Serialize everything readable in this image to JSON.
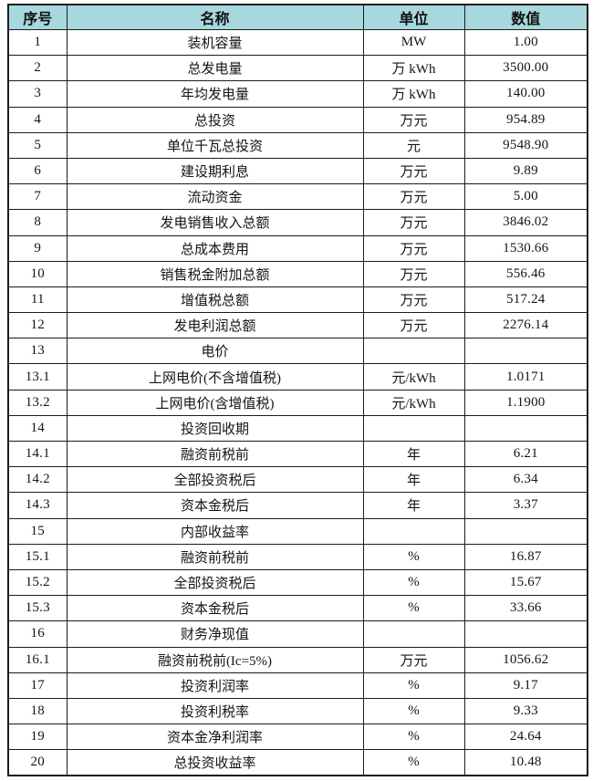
{
  "table": {
    "headers": [
      "序号",
      "名称",
      "单位",
      "数值"
    ],
    "rows": [
      {
        "no": "1",
        "name": "装机容量",
        "unit": "MW",
        "value": "1.00"
      },
      {
        "no": "2",
        "name": "总发电量",
        "unit": "万 kWh",
        "value": "3500.00"
      },
      {
        "no": "3",
        "name": "年均发电量",
        "unit": "万 kWh",
        "value": "140.00"
      },
      {
        "no": "4",
        "name": "总投资",
        "unit": "万元",
        "value": "954.89"
      },
      {
        "no": "5",
        "name": "单位千瓦总投资",
        "unit": "元",
        "value": "9548.90"
      },
      {
        "no": "6",
        "name": "建设期利息",
        "unit": "万元",
        "value": "9.89"
      },
      {
        "no": "7",
        "name": "流动资金",
        "unit": "万元",
        "value": "5.00"
      },
      {
        "no": "8",
        "name": "发电销售收入总额",
        "unit": "万元",
        "value": "3846.02"
      },
      {
        "no": "9",
        "name": "总成本费用",
        "unit": "万元",
        "value": "1530.66"
      },
      {
        "no": "10",
        "name": "销售税金附加总额",
        "unit": "万元",
        "value": "556.46"
      },
      {
        "no": "11",
        "name": "增值税总额",
        "unit": "万元",
        "value": "517.24"
      },
      {
        "no": "12",
        "name": "发电利润总额",
        "unit": "万元",
        "value": "2276.14"
      },
      {
        "no": "13",
        "name": "电价",
        "unit": "",
        "value": ""
      },
      {
        "no": "13.1",
        "name": "上网电价(不含增值税)",
        "unit": "元/kWh",
        "value": "1.0171"
      },
      {
        "no": "13.2",
        "name": "上网电价(含增值税)",
        "unit": "元/kWh",
        "value": "1.1900"
      },
      {
        "no": "14",
        "name": "投资回收期",
        "unit": "",
        "value": ""
      },
      {
        "no": "14.1",
        "name": "融资前税前",
        "unit": "年",
        "value": "6.21"
      },
      {
        "no": "14.2",
        "name": "全部投资税后",
        "unit": "年",
        "value": "6.34"
      },
      {
        "no": "14.3",
        "name": "资本金税后",
        "unit": "年",
        "value": "3.37"
      },
      {
        "no": "15",
        "name": "内部收益率",
        "unit": "",
        "value": ""
      },
      {
        "no": "15.1",
        "name": "融资前税前",
        "unit": "%",
        "value": "16.87"
      },
      {
        "no": "15.2",
        "name": "全部投资税后",
        "unit": "%",
        "value": "15.67"
      },
      {
        "no": "15.3",
        "name": "资本金税后",
        "unit": "%",
        "value": "33.66"
      },
      {
        "no": "16",
        "name": "财务净现值",
        "unit": "",
        "value": ""
      },
      {
        "no": "16.1",
        "name": "融资前税前(Ic=5%)",
        "unit": "万元",
        "value": "1056.62"
      },
      {
        "no": "17",
        "name": "投资利润率",
        "unit": "%",
        "value": "9.17"
      },
      {
        "no": "18",
        "name": "投资利税率",
        "unit": "%",
        "value": "9.33"
      },
      {
        "no": "19",
        "name": "资本金净利润率",
        "unit": "%",
        "value": "24.64"
      },
      {
        "no": "20",
        "name": "总投资收益率",
        "unit": "%",
        "value": "10.48"
      }
    ]
  },
  "colors": {
    "header_bg": "#a7d8de",
    "border": "#1c1c1c",
    "text": "#141414"
  }
}
